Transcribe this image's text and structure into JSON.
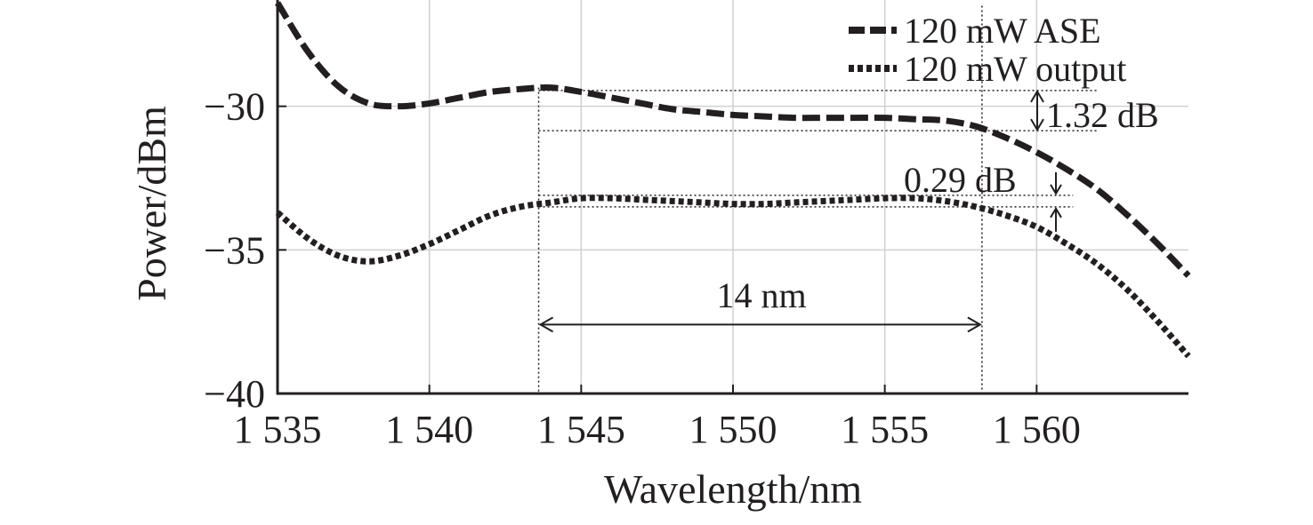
{
  "chart_data": {
    "type": "line",
    "xlabel": "Wavelength/nm",
    "ylabel": "Power/dBm",
    "xlim": [
      1535,
      1565
    ],
    "ylim": [
      -40,
      -26.3
    ],
    "x_ticks": [
      1535,
      1540,
      1545,
      1550,
      1555,
      1560
    ],
    "x_tick_labels": [
      "1 535",
      "1 540",
      "1 545",
      "1 550",
      "1 555",
      "1 560"
    ],
    "y_ticks": [
      -40,
      -35,
      -30
    ],
    "y_tick_labels": [
      "−40",
      "−35",
      "−30"
    ],
    "grid": true,
    "legend_position": "top-right",
    "series": [
      {
        "name": "120 mW ASE",
        "style": "dashed",
        "color": "#231f20",
        "x": [
          1535,
          1536,
          1537,
          1538,
          1539,
          1540,
          1541,
          1542,
          1543,
          1544,
          1545,
          1546,
          1547,
          1548,
          1549,
          1550,
          1551,
          1552,
          1553,
          1554,
          1555,
          1556,
          1557,
          1558,
          1559,
          1560,
          1561,
          1562,
          1563,
          1564,
          1565
        ],
        "y": [
          -26.4,
          -28.1,
          -29.3,
          -29.9,
          -30.0,
          -29.9,
          -29.7,
          -29.5,
          -29.4,
          -29.35,
          -29.5,
          -29.7,
          -29.9,
          -30.1,
          -30.2,
          -30.3,
          -30.35,
          -30.4,
          -30.4,
          -30.4,
          -30.4,
          -30.45,
          -30.5,
          -30.7,
          -31.1,
          -31.6,
          -32.2,
          -32.9,
          -33.8,
          -34.8,
          -35.9
        ]
      },
      {
        "name": "120 mW output",
        "style": "dotted",
        "color": "#231f20",
        "x": [
          1535,
          1536,
          1537,
          1538,
          1539,
          1540,
          1541,
          1542,
          1543,
          1544,
          1545,
          1546,
          1547,
          1548,
          1549,
          1550,
          1551,
          1552,
          1553,
          1554,
          1555,
          1556,
          1557,
          1558,
          1559,
          1560,
          1561,
          1562,
          1563,
          1564,
          1565
        ],
        "y": [
          -33.7,
          -34.6,
          -35.2,
          -35.4,
          -35.2,
          -34.8,
          -34.3,
          -33.8,
          -33.5,
          -33.35,
          -33.2,
          -33.2,
          -33.25,
          -33.3,
          -33.35,
          -33.4,
          -33.4,
          -33.35,
          -33.3,
          -33.25,
          -33.2,
          -33.2,
          -33.3,
          -33.5,
          -33.8,
          -34.2,
          -34.8,
          -35.5,
          -36.4,
          -37.5,
          -38.7
        ]
      }
    ],
    "annotations": {
      "span_label": "14 nm",
      "span_x": [
        1543.6,
        1558.2
      ],
      "span_y": -37.6,
      "ase_flatness_label": "1.32 dB",
      "ase_flatness_y": [
        -29.45,
        -30.85
      ],
      "output_flatness_label": "0.29 dB",
      "output_flatness_y": [
        -33.1,
        -33.5
      ]
    }
  }
}
